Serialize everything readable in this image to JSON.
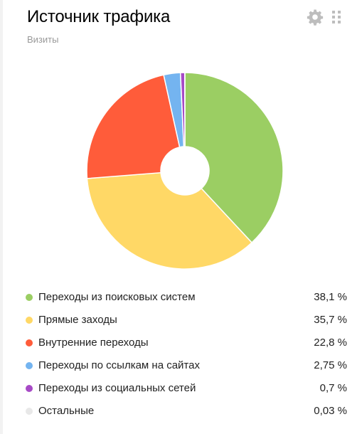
{
  "widget": {
    "title": "Источник трафика",
    "subtitle": "Визиты",
    "icons": {
      "settings": "gear-icon",
      "drag": "drag-handle-icon"
    }
  },
  "chart_data": {
    "type": "pie",
    "title": "Источник трафика",
    "subtitle": "Визиты",
    "donut": true,
    "legend_position": "bottom",
    "categories": [
      "Переходы из поисковых систем",
      "Прямые заходы",
      "Внутренние переходы",
      "Переходы по ссылкам на сайтах",
      "Переходы из социальных сетей",
      "Остальные"
    ],
    "values": [
      38.1,
      35.7,
      22.8,
      2.75,
      0.7,
      0.03
    ],
    "value_labels": [
      "38,1 %",
      "35,7 %",
      "22,8 %",
      "2,75 %",
      "0,7 %",
      "0,03 %"
    ],
    "colors": [
      "#9bce63",
      "#ffd866",
      "#ff5c3a",
      "#74b4f0",
      "#a74ac6",
      "#e8e8e8"
    ]
  }
}
